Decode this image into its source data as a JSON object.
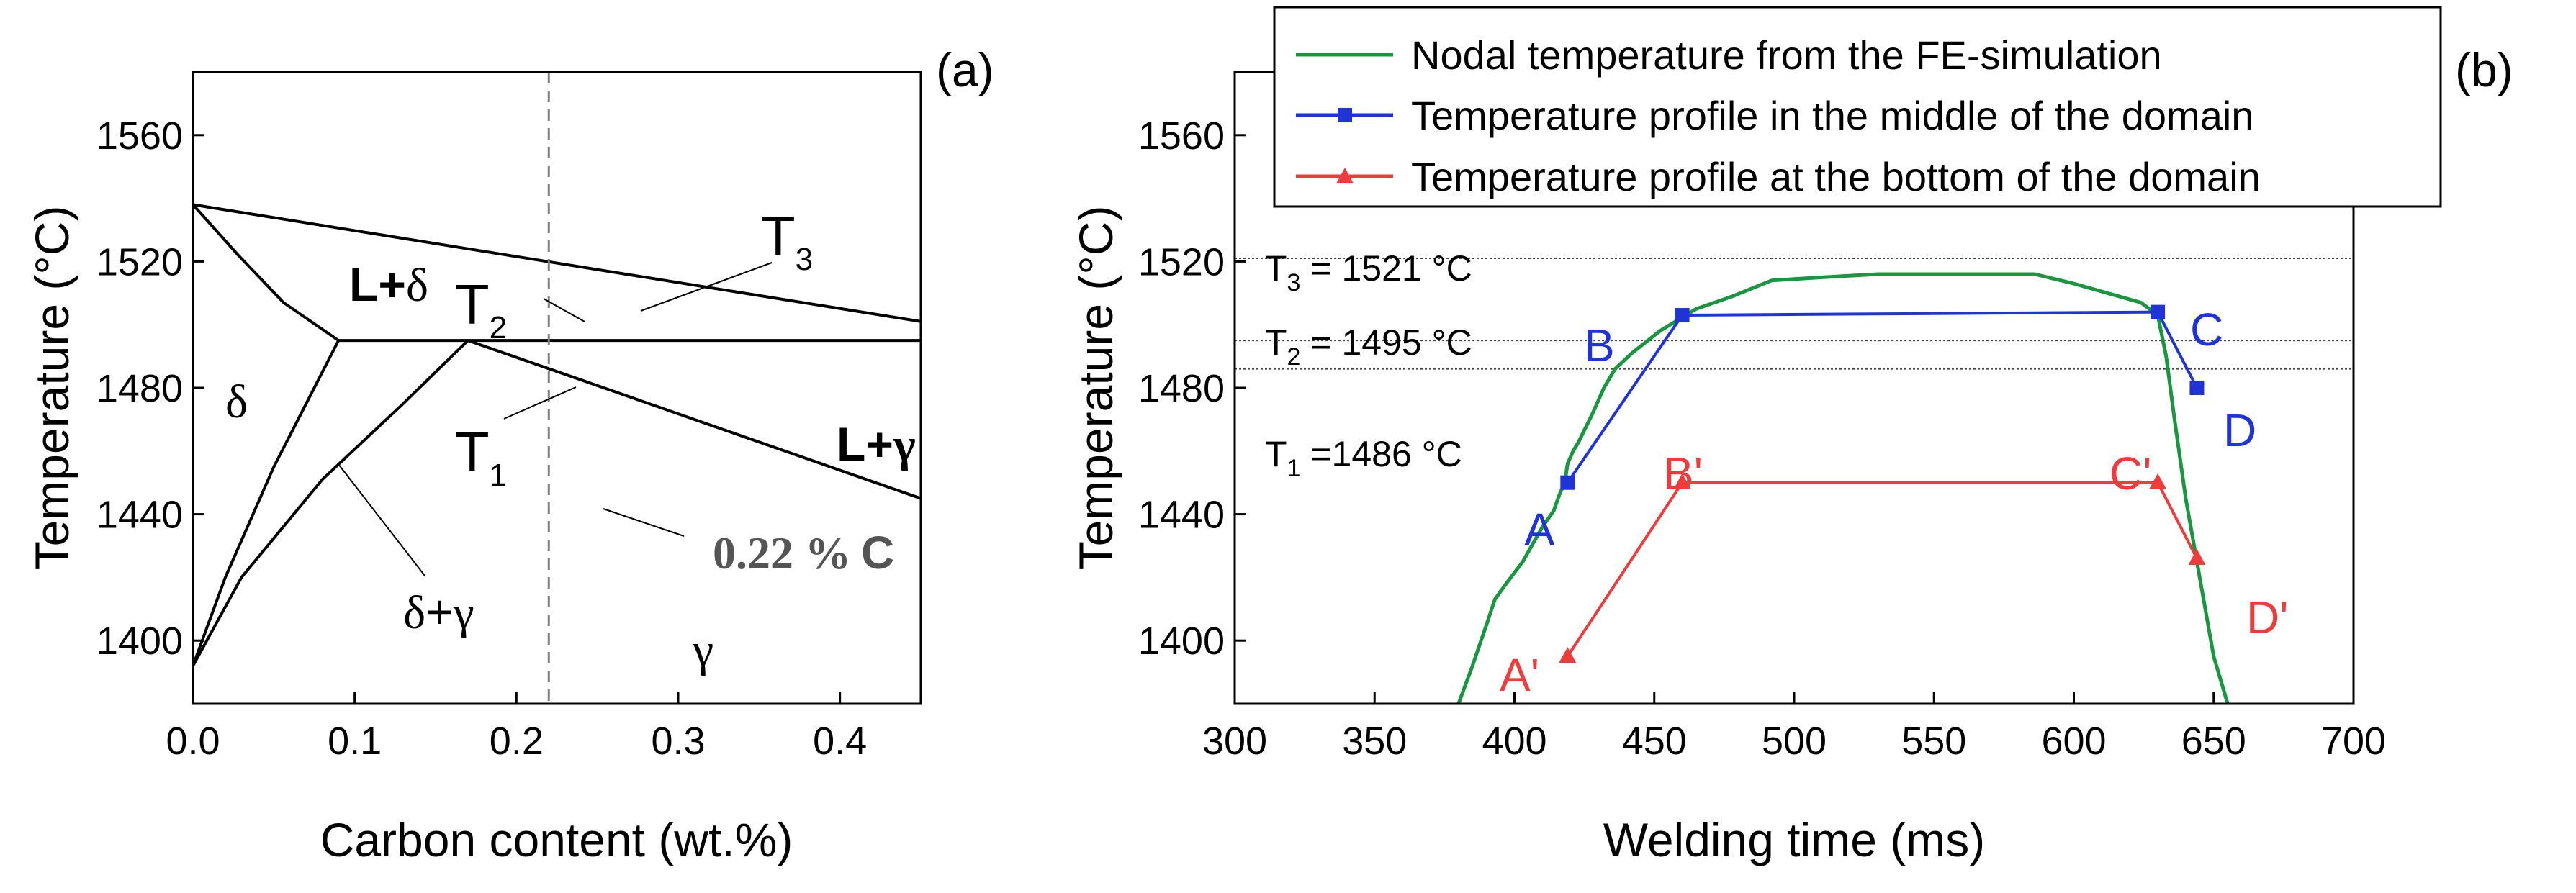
{
  "chart_data": [
    {
      "panel": "(a)",
      "type": "line",
      "xlabel": "Carbon content (wt.%)",
      "ylabel": "Temperature (°C)",
      "xlim": [
        0.0,
        0.45
      ],
      "ylim": [
        1380,
        1580
      ],
      "xticks": [
        "0.0",
        "0.1",
        "0.2",
        "0.3",
        "0.4"
      ],
      "xtick_values": [
        0.0,
        0.1,
        0.2,
        0.3,
        0.4
      ],
      "yticks": [
        "1400",
        "1440",
        "1480",
        "1520",
        "1560"
      ],
      "ytick_values": [
        1400,
        1440,
        1480,
        1520,
        1560
      ],
      "series": [
        {
          "name": "liquidus",
          "x": [
            0.0,
            0.45
          ],
          "y": [
            1538,
            1501
          ]
        },
        {
          "name": "delta-solidus",
          "x": [
            0.0,
            0.028,
            0.056,
            0.09
          ],
          "y": [
            1538,
            1522,
            1507,
            1495
          ]
        },
        {
          "name": "peritectic-line",
          "x": [
            0.09,
            0.45
          ],
          "y": [
            1495,
            1495
          ]
        },
        {
          "name": "gamma-solidus",
          "x": [
            0.17,
            0.45
          ],
          "y": [
            1495,
            1445
          ]
        },
        {
          "name": "delta-gamma-boundary-1",
          "x": [
            0.0,
            0.02,
            0.05,
            0.07,
            0.09
          ],
          "y": [
            1392,
            1420,
            1455,
            1475,
            1495
          ]
        },
        {
          "name": "delta-gamma-boundary-2",
          "x": [
            0.0,
            0.03,
            0.08,
            0.13,
            0.17
          ],
          "y": [
            1392,
            1420,
            1451,
            1475,
            1495
          ]
        }
      ],
      "reference_line": {
        "x": 0.22,
        "label": "0.22 % C"
      },
      "regions": {
        "delta": "δ",
        "l_delta_l": "L+",
        "l_delta_d": "δ",
        "l_gamma_l": "L+",
        "l_gamma_g": "γ",
        "delta_gamma_d": "δ",
        "delta_gamma_plus": "+",
        "delta_gamma_g": "γ",
        "gamma": "γ"
      },
      "annotations": {
        "t3": "T",
        "t3_sub": "3",
        "t2": "T",
        "t2_sub": "2",
        "t1": "T",
        "t1_sub": "1",
        "carbon_pct": "0.22 %",
        "carbon_c": "C"
      }
    },
    {
      "panel": "(b)",
      "type": "line",
      "xlabel": "Welding time (ms)",
      "ylabel": "Temperature (°C)",
      "xlim": [
        300,
        700
      ],
      "ylim": [
        1380,
        1580
      ],
      "xticks": [
        "300",
        "350",
        "400",
        "450",
        "500",
        "550",
        "600",
        "650",
        "700"
      ],
      "xtick_values": [
        300,
        350,
        400,
        450,
        500,
        550,
        600,
        650,
        700
      ],
      "yticks": [
        "1400",
        "1440",
        "1480",
        "1520",
        "1560"
      ],
      "ytick_values": [
        1400,
        1440,
        1480,
        1520,
        1560
      ],
      "series": [
        {
          "name": "Nodal temperature from the FE-simulation",
          "color": "#1a9641",
          "x": [
            380,
            385,
            390,
            393,
            397,
            403,
            410,
            414,
            416,
            418,
            419,
            421,
            423,
            428,
            432,
            436,
            442,
            452,
            465,
            478,
            492,
            510,
            530,
            560,
            586,
            600,
            612,
            624,
            630,
            633,
            636,
            640,
            645,
            650,
            655
          ],
          "y": [
            1380,
            1392,
            1405,
            1413,
            1418,
            1425,
            1436,
            1441,
            1446,
            1450,
            1456,
            1460,
            1463,
            1472,
            1480,
            1486,
            1491,
            1498,
            1505,
            1509,
            1514,
            1515,
            1516,
            1516,
            1516,
            1513,
            1510,
            1507,
            1503,
            1490,
            1470,
            1445,
            1420,
            1395,
            1380
          ]
        },
        {
          "name": "Temperature profile in the middle of the domain",
          "color": "#1f33d6",
          "x": [
            419,
            460,
            630,
            644
          ],
          "y": [
            1450,
            1503,
            1504,
            1480
          ]
        },
        {
          "name": "Temperature profile at the bottom of the domain",
          "color": "#ee3b3b",
          "x": [
            419,
            460,
            630,
            644
          ],
          "y": [
            1395,
            1450,
            1450,
            1426
          ]
        }
      ],
      "reference_lines": [
        {
          "y": 1521,
          "label": "T",
          "sub": "3",
          "text": " = 1521 °C"
        },
        {
          "y": 1495,
          "label": "T",
          "sub": "2",
          "text": " = 1495 °C"
        },
        {
          "y": 1486,
          "label": "T",
          "sub": "1",
          "text": " =1486 °C"
        }
      ],
      "point_labels_blue": [
        "A",
        "B",
        "C",
        "D"
      ],
      "point_labels_red": [
        "A'",
        "B'",
        "C'",
        "D'"
      ],
      "legend_position": "top"
    }
  ],
  "colors": {
    "green": "#1a9641",
    "blue": "#1f33d6",
    "red": "#ee3b3b",
    "grey": "#808080"
  }
}
